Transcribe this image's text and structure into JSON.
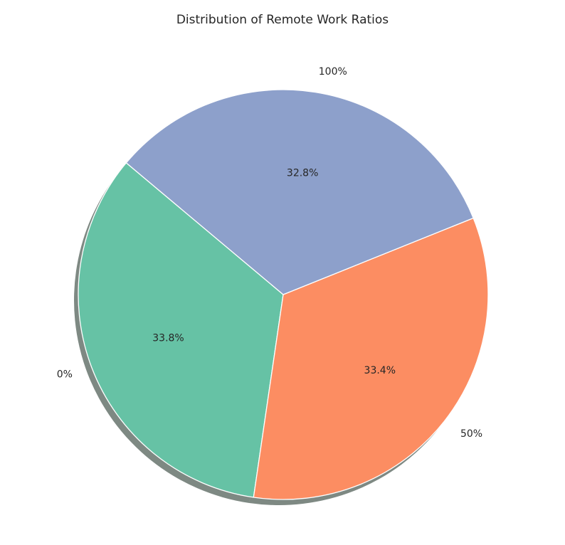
{
  "chart_data": {
    "type": "pie",
    "title": "Distribution of Remote Work Ratios",
    "categories": [
      "0%",
      "50%",
      "100%"
    ],
    "values": [
      33.8,
      33.4,
      32.8
    ],
    "value_labels": [
      "33.8%",
      "33.4%",
      "32.8%"
    ],
    "colors": [
      "#66c2a5",
      "#fc8d62",
      "#8da0cb"
    ],
    "start_angle_deg": 140,
    "direction": "counterclockwise",
    "shadow": true,
    "legend": "none"
  }
}
